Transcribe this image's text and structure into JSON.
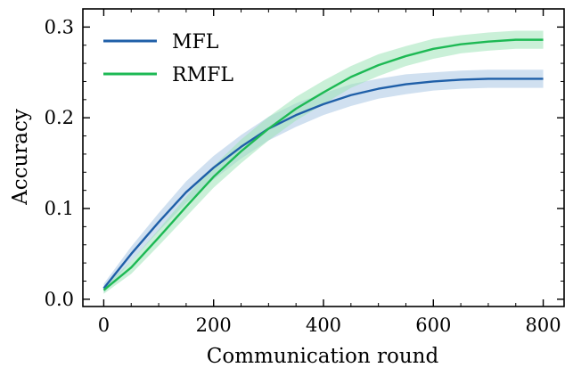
{
  "chart_data": {
    "type": "line",
    "title": "",
    "xlabel": "Communication round",
    "ylabel": "Accuracy",
    "xlim": [
      -38,
      838
    ],
    "ylim": [
      -0.008,
      0.32
    ],
    "x_ticks": [
      0,
      200,
      400,
      600,
      800
    ],
    "x_tick_labels": [
      "0",
      "200",
      "400",
      "600",
      "800"
    ],
    "y_ticks": [
      0.0,
      0.1,
      0.2,
      0.3
    ],
    "y_tick_labels": [
      "0.0",
      "0.1",
      "0.2",
      "0.3"
    ],
    "legend": {
      "position": "top-left",
      "entries": [
        "MFL",
        "RMFL"
      ]
    },
    "x": [
      0,
      50,
      100,
      150,
      200,
      250,
      300,
      350,
      400,
      450,
      500,
      550,
      600,
      650,
      700,
      750,
      800
    ],
    "series": [
      {
        "name": "MFL",
        "color": "#1f5fa8",
        "band_color": "#a9c6e4",
        "values": [
          0.012,
          0.05,
          0.085,
          0.118,
          0.145,
          0.168,
          0.188,
          0.203,
          0.215,
          0.225,
          0.232,
          0.237,
          0.24,
          0.242,
          0.243,
          0.243,
          0.243
        ],
        "band": [
          0.005,
          0.008,
          0.01,
          0.012,
          0.013,
          0.013,
          0.013,
          0.013,
          0.012,
          0.012,
          0.011,
          0.011,
          0.01,
          0.01,
          0.01,
          0.01,
          0.01
        ]
      },
      {
        "name": "RMFL",
        "color": "#1db954",
        "band_color": "#9fe3b8",
        "values": [
          0.01,
          0.035,
          0.068,
          0.102,
          0.135,
          0.163,
          0.188,
          0.21,
          0.228,
          0.245,
          0.258,
          0.268,
          0.276,
          0.281,
          0.284,
          0.286,
          0.286
        ],
        "band": [
          0.004,
          0.007,
          0.009,
          0.011,
          0.012,
          0.013,
          0.013,
          0.013,
          0.013,
          0.012,
          0.012,
          0.011,
          0.011,
          0.01,
          0.01,
          0.01,
          0.01
        ]
      }
    ]
  }
}
